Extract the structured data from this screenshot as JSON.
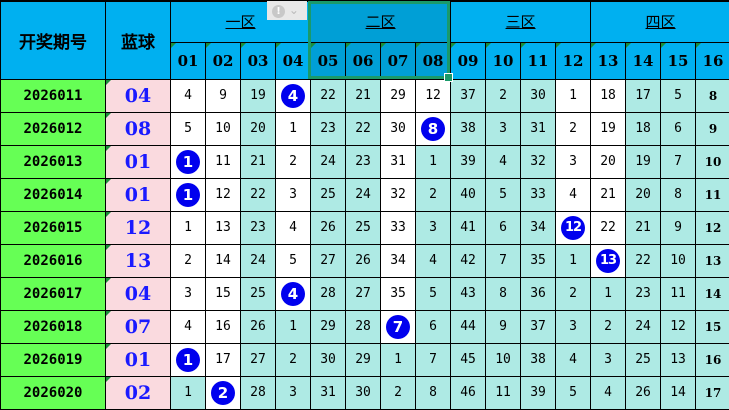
{
  "headers": {
    "period": "开奖期号",
    "blue": "蓝球",
    "zones": [
      "一区",
      "二区",
      "三区",
      "四区"
    ],
    "numbers": [
      "01",
      "02",
      "03",
      "04",
      "05",
      "06",
      "07",
      "08",
      "09",
      "10",
      "11",
      "12",
      "13",
      "14",
      "15",
      "16"
    ]
  },
  "selected_zone": "二区",
  "tooltip_icon": "warning-icon",
  "colors": {
    "header": "#00b0f0",
    "selected_header": "#009fd6",
    "period": "#66ff55",
    "blue_cell": "#fadadf",
    "teal": "#aeeae4",
    "ball": "#0000ee"
  },
  "rows": [
    {
      "period": "2026011",
      "blue": "04",
      "hit": 4,
      "values": [
        4,
        9,
        19,
        4,
        22,
        21,
        29,
        12,
        37,
        2,
        30,
        1,
        18,
        17,
        5,
        8
      ],
      "white": [
        1,
        2,
        4,
        7,
        8,
        12,
        13
      ]
    },
    {
      "period": "2026012",
      "blue": "08",
      "hit": 8,
      "values": [
        5,
        10,
        20,
        1,
        23,
        22,
        30,
        8,
        38,
        3,
        31,
        2,
        19,
        18,
        6,
        9
      ],
      "white": [
        1,
        2,
        4,
        7,
        8,
        12,
        13
      ]
    },
    {
      "period": "2026013",
      "blue": "01",
      "hit": 1,
      "values": [
        1,
        11,
        21,
        2,
        24,
        23,
        31,
        1,
        39,
        4,
        32,
        3,
        20,
        19,
        7,
        10
      ],
      "white": [
        1,
        2,
        4,
        7,
        12,
        13
      ]
    },
    {
      "period": "2026014",
      "blue": "01",
      "hit": 1,
      "values": [
        1,
        12,
        22,
        3,
        25,
        24,
        32,
        2,
        40,
        5,
        33,
        4,
        21,
        20,
        8,
        11
      ],
      "white": [
        1,
        2,
        4,
        7,
        12,
        13
      ]
    },
    {
      "period": "2026015",
      "blue": "12",
      "hit": 12,
      "values": [
        1,
        13,
        23,
        4,
        26,
        25,
        33,
        3,
        41,
        6,
        34,
        12,
        22,
        21,
        9,
        12
      ],
      "white": [
        1,
        2,
        4,
        7,
        12,
        13
      ]
    },
    {
      "period": "2026016",
      "blue": "13",
      "hit": 13,
      "values": [
        2,
        14,
        24,
        5,
        27,
        26,
        34,
        4,
        42,
        7,
        35,
        1,
        13,
        22,
        10,
        13
      ],
      "white": [
        1,
        2,
        4,
        7,
        13
      ]
    },
    {
      "period": "2026017",
      "blue": "04",
      "hit": 4,
      "values": [
        3,
        15,
        25,
        4,
        28,
        27,
        35,
        5,
        43,
        8,
        36,
        2,
        1,
        23,
        11,
        14
      ],
      "white": [
        1,
        2,
        4,
        7
      ]
    },
    {
      "period": "2026018",
      "blue": "07",
      "hit": 7,
      "values": [
        4,
        16,
        26,
        1,
        29,
        28,
        7,
        6,
        44,
        9,
        37,
        3,
        2,
        24,
        12,
        15
      ],
      "white": [
        1,
        2,
        7
      ]
    },
    {
      "period": "2026019",
      "blue": "01",
      "hit": 1,
      "values": [
        1,
        17,
        27,
        2,
        30,
        29,
        1,
        7,
        45,
        10,
        38,
        4,
        3,
        25,
        13,
        16
      ],
      "white": [
        1,
        2
      ]
    },
    {
      "period": "2026020",
      "blue": "02",
      "hit": 2,
      "values": [
        1,
        2,
        28,
        3,
        31,
        30,
        2,
        8,
        46,
        11,
        39,
        5,
        4,
        26,
        14,
        17
      ],
      "white": [
        2
      ]
    }
  ]
}
